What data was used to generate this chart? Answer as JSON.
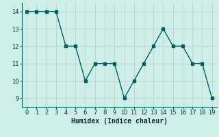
{
  "x": [
    0,
    1,
    2,
    3,
    4,
    5,
    6,
    7,
    8,
    9,
    10,
    11,
    12,
    13,
    14,
    15,
    16,
    17,
    18,
    19
  ],
  "y": [
    14,
    14,
    14,
    14,
    12,
    12,
    10,
    11,
    11,
    11,
    9,
    10,
    11,
    12,
    13,
    12,
    12,
    11,
    11,
    9
  ],
  "xlabel": "Humidex (Indice chaleur)",
  "xlim": [
    -0.5,
    19.5
  ],
  "ylim": [
    8.5,
    14.5
  ],
  "yticks": [
    9,
    10,
    11,
    12,
    13,
    14
  ],
  "xticks": [
    0,
    1,
    2,
    3,
    4,
    5,
    6,
    7,
    8,
    9,
    10,
    11,
    12,
    13,
    14,
    15,
    16,
    17,
    18,
    19
  ],
  "line_color": "#006060",
  "marker_color": "#006060",
  "bg_color": "#ceeee8",
  "grid_color": "#c0d8d4",
  "fig_bg": "#ceeee8"
}
